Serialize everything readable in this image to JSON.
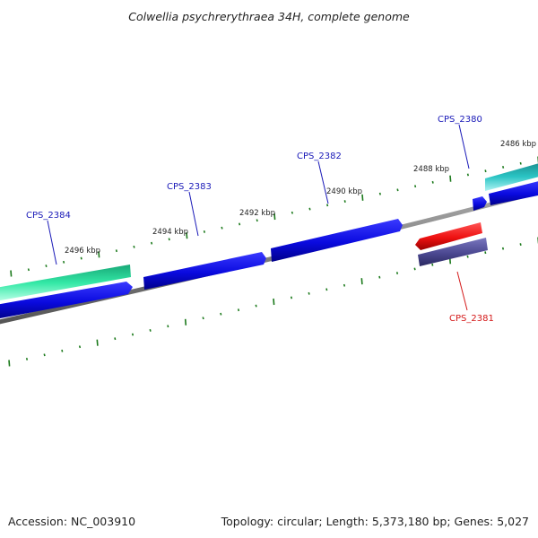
{
  "title": "Colwellia psychrerythraea 34H, complete genome",
  "footer": {
    "accession": "Accession: NC_003910",
    "summary": "Topology: circular; Length: 5,373,180 bp; Genes: 5,027"
  },
  "colors": {
    "backbone": "#7f7f7f",
    "tick": "#1c7a1c",
    "cds_forward": "#0a0adf",
    "cds_reverse": "#0a0adf",
    "gene_label_blue": "#1a1ab8",
    "gene_label_red": "#d41a1a",
    "rna_green": "#33e8a6",
    "rna_teal": "#2ac4c4",
    "red_feature": "#ee1111",
    "purple_feature": "#4b4891"
  },
  "scale_labels": [
    "2496 kbp",
    "2494 kbp",
    "2492 kbp",
    "2490 kbp",
    "2488 kbp",
    "2486 kbp"
  ],
  "genes": [
    {
      "name": "CPS_2384",
      "color": "#1a1ab8"
    },
    {
      "name": "CPS_2383",
      "color": "#1a1ab8"
    },
    {
      "name": "CPS_2382",
      "color": "#1a1ab8"
    },
    {
      "name": "CPS_2380",
      "color": "#1a1ab8"
    },
    {
      "name": "CPS_2381",
      "color": "#d41a1a"
    }
  ]
}
